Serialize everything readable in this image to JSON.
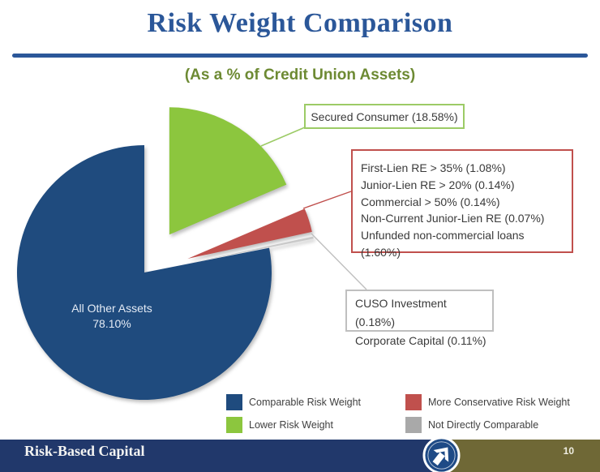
{
  "header": {
    "title": "Risk Weight Comparison",
    "subtitle": "(As a % of Credit Union Assets)",
    "accent_color": "#2B5799",
    "subtitle_color": "#6D8A33"
  },
  "chart_data": {
    "type": "pie",
    "title": "Risk Weight Comparison",
    "subtitle": "(As a % of Credit Union Assets)",
    "units": "percent of credit union assets",
    "legend_position": "bottom",
    "slices": [
      {
        "id": "secured-consumer",
        "label": "Secured Consumer",
        "value": 18.58,
        "color": "#8CC63E",
        "category": "Lower Risk Weight",
        "exploded": true
      },
      {
        "id": "more-conservative-group",
        "label": "More Conservative Risk Weight group",
        "value": 3.03,
        "color": "#C0504D",
        "category": "More Conservative Risk Weight",
        "exploded": true,
        "components": [
          {
            "label": "First-Lien RE > 35%",
            "value": 1.08
          },
          {
            "label": "Junior-Lien RE > 20%",
            "value": 0.14
          },
          {
            "label": "Commercial > 50%",
            "value": 0.14
          },
          {
            "label": "Non-Current Junior-Lien RE",
            "value": 0.07
          },
          {
            "label": "Unfunded non-commercial loans",
            "value": 1.6
          }
        ]
      },
      {
        "id": "not-directly-comparable-group",
        "label": "Not Directly Comparable group",
        "value": 0.29,
        "color": "#C9C9C9",
        "category": "Not Directly Comparable",
        "exploded": true,
        "components": [
          {
            "label": "CUSO Investment",
            "value": 0.18
          },
          {
            "label": "Corporate Capital",
            "value": 0.11
          }
        ]
      },
      {
        "id": "all-other-assets",
        "label": "All Other Assets",
        "value": 78.1,
        "color": "#1F4B7E",
        "category": "Comparable Risk Weight",
        "exploded": false
      }
    ]
  },
  "pie_label": {
    "line1": "All Other Assets",
    "line2": "78.10%"
  },
  "callouts": {
    "green": {
      "border_color": "#9CCB66",
      "lines": [
        "Secured Consumer (18.58%)"
      ]
    },
    "red": {
      "border_color": "#C0504D",
      "lines": [
        "First-Lien RE > 35% (1.08%)",
        "Junior-Lien RE > 20% (0.14%)",
        "Commercial > 50% (0.14%)",
        "Non-Current Junior-Lien RE (0.07%)",
        "Unfunded non-commercial loans (1.60%)"
      ]
    },
    "gray": {
      "border_color": "#BFBFBF",
      "lines": [
        "CUSO Investment (0.18%)",
        "Corporate Capital (0.11%)"
      ]
    }
  },
  "legend": {
    "items": [
      {
        "label": "Comparable Risk Weight",
        "color": "#1F4B7E"
      },
      {
        "label": "Lower Risk Weight",
        "color": "#8CC63E"
      },
      {
        "label": "More Conservative Risk Weight",
        "color": "#C0504D"
      },
      {
        "label": "Not Directly Comparable",
        "color": "#A9A9A9"
      }
    ]
  },
  "footer": {
    "title": "Risk-Based Capital",
    "page_number": "10",
    "bar_color": "#21386B",
    "accent_color": "#6F6836",
    "logo": "credit-union-emblem"
  }
}
